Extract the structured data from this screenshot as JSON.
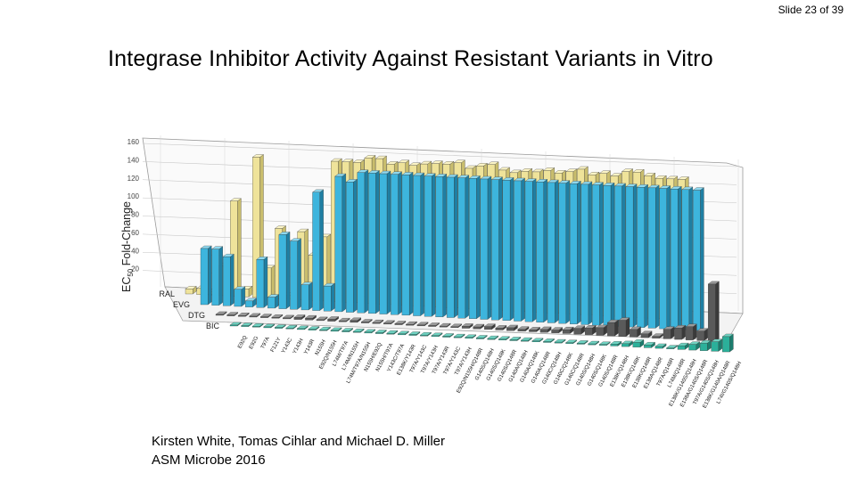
{
  "slide": {
    "counter": "Slide 23 of 39"
  },
  "title": "Integrase Inhibitor Activity Against Resistant Variants in Vitro",
  "credits": {
    "line1": "Kirsten White, Tomas Cihlar and Michael D. Miller",
    "line2": "ASM Microbe 2016"
  },
  "colors": {
    "RAL": "#efe39a",
    "EVG": "#3db5dd",
    "DTG": "#555555",
    "DTG_hi": "#808080",
    "DTG_dark": "#383838",
    "DTG_top": "#9a9a9a",
    "DTG_side": "#3a3a3a",
    "DTG_front": "#5a5a5a",
    "BIC": "#2bb09a",
    "BIC_top": "#6fd3c2",
    "BIC_side": "#1b7d6e",
    "grid": "#9a9a9a"
  },
  "chart_data": {
    "type": "bar3d",
    "title": "",
    "ylabel": "EC50 Fold-Change",
    "ylabel_main": "EC",
    "ylabel_sub": "50",
    "ylabel_rest": " Fold-Change",
    "ylim": [
      0,
      160
    ],
    "yticks": [
      20,
      40,
      60,
      80,
      100,
      120,
      140,
      160
    ],
    "yticklabels": [
      "20",
      "40",
      "60",
      "80",
      "100",
      "120",
      "140",
      "160"
    ],
    "series_names": [
      "RAL",
      "EVG",
      "DTG",
      "BIC"
    ],
    "categories": [
      "E92Q",
      "E92G",
      "T97A",
      "F121Y",
      "Y143C",
      "Y143H",
      "Y143R",
      "N155H",
      "E92Q/N155H",
      "L74M/T97A",
      "L74M/N155H",
      "L74M/T97A/N155H",
      "N155H/E92Q",
      "N155H/T97A",
      "Y143C/T97A",
      "E138K/Y143R",
      "T97A/Y143C",
      "T97A/Y143H",
      "T97A/Y143R",
      "T97A/Y143C",
      "T97A/Y143H",
      "E92Q/N155H/Q148R",
      "G140S/Q148H",
      "G140S/Q148K",
      "G140S/Q148R",
      "G140A/Q148H",
      "G140A/Q148K",
      "G140A/Q148R",
      "G140C/Q148H",
      "G140C/Q148K",
      "G140C/Q148R",
      "G140S/Q148H",
      "G140S/Q148K",
      "G140S/Q148R",
      "E138K/Q148H",
      "E138K/Q148K",
      "E138K/Q148R",
      "E138A/Q148R",
      "T97A/Q148R",
      "L74M/Q148R",
      "E138K/G140S/Q148H",
      "E138A/G140S/Q148R",
      "T97A/G140S/Q148H",
      "E138K/G140A/Q148R",
      "L74I/G140S/Q148H"
    ],
    "series": [
      {
        "name": "RAL",
        "values": [
          5,
          6,
          1,
          30,
          95,
          8,
          140,
          30,
          70,
          4,
          68,
          45,
          64,
          140,
          140,
          140,
          145,
          145,
          140,
          142,
          140,
          142,
          143,
          143,
          145,
          140,
          143,
          145,
          140,
          138,
          140,
          140,
          142,
          140,
          142,
          145,
          140,
          142,
          140,
          145,
          145,
          142,
          140,
          140,
          140
        ]
      },
      {
        "name": "EVG",
        "values": [
          56,
          56,
          49,
          17,
          6,
          48,
          11,
          74,
          68,
          25,
          118,
          25,
          135,
          130,
          140,
          140,
          140,
          140,
          140,
          140,
          140,
          140,
          140,
          140,
          140,
          140,
          140,
          140,
          140,
          140,
          140,
          140,
          140,
          140,
          140,
          140,
          140,
          140,
          140,
          140,
          140,
          140,
          140,
          140,
          140
        ]
      },
      {
        "name": "DTG",
        "values": [
          1,
          1,
          1,
          1,
          1,
          1,
          1,
          2,
          2,
          1,
          2,
          1,
          2,
          1,
          1,
          1,
          1,
          1,
          1,
          1,
          1,
          1,
          2,
          2,
          3,
          2,
          3,
          2,
          2,
          3,
          3,
          4,
          6,
          7,
          8,
          14,
          17,
          8,
          4,
          2,
          10,
          12,
          14,
          10,
          60
        ]
      },
      {
        "name": "BIC",
        "values": [
          1,
          1,
          1,
          1,
          1,
          1,
          1,
          1,
          1,
          1,
          1,
          1,
          1,
          1,
          1,
          1,
          1,
          1,
          1,
          1,
          1,
          1,
          1,
          1,
          1,
          1,
          1,
          1,
          1,
          1,
          1,
          1,
          1,
          1,
          2,
          3,
          5,
          3,
          2,
          1,
          4,
          6,
          8,
          10,
          16
        ]
      }
    ]
  }
}
